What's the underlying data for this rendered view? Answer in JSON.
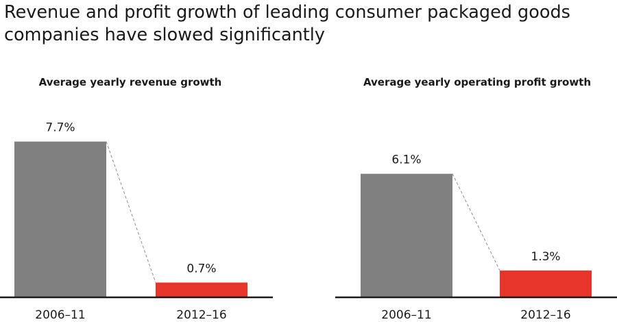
{
  "title_lines": [
    "Revenue and profit growth of leading consumer packaged goods",
    "companies have slowed significantly"
  ],
  "colors": {
    "past": "#808080",
    "recent": "#e8352b",
    "axis": "#1a1a1a",
    "connector": "#8c8c8c"
  },
  "chart_data": [
    {
      "type": "bar",
      "title": "Average yearly revenue growth",
      "categories": [
        "2006–11",
        "2012–16"
      ],
      "values": [
        7.7,
        0.7
      ],
      "value_labels": [
        "7.7%",
        "0.7%"
      ],
      "unit": "%",
      "ylim": [
        0,
        8.5
      ],
      "grid": false,
      "colors": [
        "#808080",
        "#e8352b"
      ]
    },
    {
      "type": "bar",
      "title": "Average yearly operating profit growth",
      "categories": [
        "2006–11",
        "2012–16"
      ],
      "values": [
        6.1,
        1.3
      ],
      "value_labels": [
        "6.1%",
        "1.3%"
      ],
      "unit": "%",
      "ylim": [
        0,
        8.5
      ],
      "grid": false,
      "colors": [
        "#808080",
        "#e8352b"
      ]
    }
  ]
}
